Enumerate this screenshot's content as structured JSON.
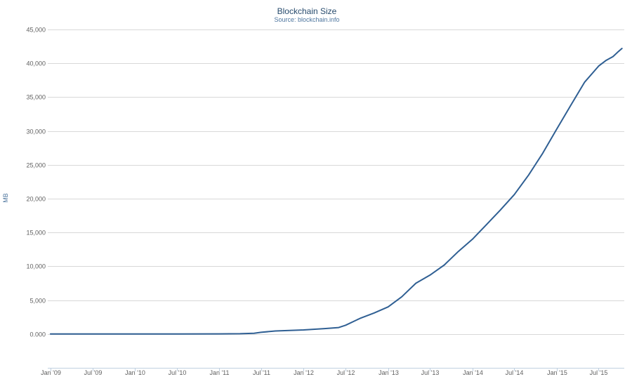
{
  "chart_data": {
    "type": "line",
    "title": "Blockchain Size",
    "subtitle": "Source: blockchain.info",
    "xlabel": "",
    "ylabel": "MB",
    "ylim": [
      -5000,
      45000
    ],
    "xlim": [
      "2008-12-20",
      "2015-10-20"
    ],
    "grid": true,
    "legend": "none",
    "line_color": "#2f5f93",
    "y_ticks": [
      0,
      5000,
      10000,
      15000,
      20000,
      25000,
      30000,
      35000,
      40000,
      45000
    ],
    "y_tick_labels": [
      "0.000",
      "5,000",
      "10,000",
      "15,000",
      "20,000",
      "25,000",
      "30,000",
      "35,000",
      "40,000",
      "45,000"
    ],
    "x_ticks": [
      "2009-01-01",
      "2009-07-01",
      "2010-01-01",
      "2010-07-01",
      "2011-01-01",
      "2011-07-01",
      "2012-01-01",
      "2012-07-01",
      "2013-01-01",
      "2013-07-01",
      "2014-01-01",
      "2014-07-01",
      "2015-01-01",
      "2015-07-01"
    ],
    "x_tick_labels": [
      "Jan '09",
      "Jul '09",
      "Jan '10",
      "Jul '10",
      "Jan '11",
      "Jul '11",
      "Jan '12",
      "Jul '12",
      "Jan '13",
      "Jul '13",
      "Jan '14",
      "Jul '14",
      "Jan '15",
      "Jul '15"
    ],
    "series": [
      {
        "x": [
          "2009-01-01",
          "2009-07-01",
          "2010-01-01",
          "2010-07-01",
          "2011-01-01",
          "2011-04-01",
          "2011-06-01",
          "2011-07-01",
          "2011-09-01",
          "2012-01-01",
          "2012-04-01",
          "2012-06-01",
          "2012-07-01",
          "2012-09-01",
          "2012-11-01",
          "2013-01-01",
          "2013-03-01",
          "2013-05-01",
          "2013-07-01",
          "2013-09-01",
          "2013-11-01",
          "2014-01-01",
          "2014-03-01",
          "2014-05-01",
          "2014-07-01",
          "2014-09-01",
          "2014-11-01",
          "2015-01-01",
          "2015-03-01",
          "2015-05-01",
          "2015-07-01",
          "2015-08-01",
          "2015-09-01",
          "2015-09-20",
          "2015-10-10"
        ],
        "y": [
          0,
          0,
          0,
          0,
          20,
          40,
          100,
          250,
          450,
          600,
          800,
          950,
          1300,
          2300,
          3100,
          4000,
          5500,
          7500,
          8700,
          10200,
          12200,
          14000,
          16100,
          18300,
          20600,
          23500,
          26700,
          30300,
          33700,
          37200,
          39600,
          40400,
          41000,
          41600,
          42200
        ]
      }
    ]
  }
}
